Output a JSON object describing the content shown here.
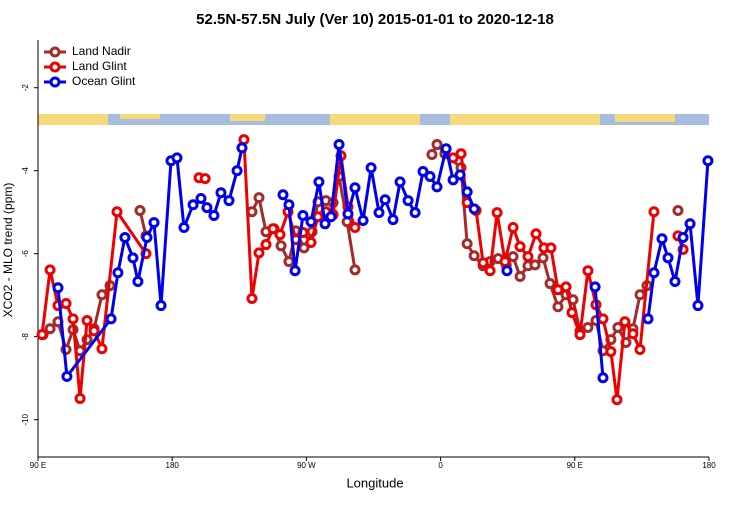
{
  "chart_data": {
    "type": "line",
    "title": "52.5N-57.5N July (Ver 10)   2015-01-01 to 2020-12-18",
    "xlabel": "Longitude",
    "ylabel": "XCO2 - MLO trend (ppm)",
    "xlim": [
      90,
      540
    ],
    "xticks": [
      {
        "value": 90,
        "label": "90 E"
      },
      {
        "value": 180,
        "label": "180"
      },
      {
        "value": 270,
        "label": "90 W"
      },
      {
        "value": 360,
        "label": "0"
      },
      {
        "value": 450,
        "label": "90 E"
      },
      {
        "value": 540,
        "label": "180"
      }
    ],
    "ylim": [
      -10.9,
      -0.85
    ],
    "yticks": [
      -2,
      -4,
      -6,
      -8,
      -10
    ],
    "legend": "top-left",
    "series": [
      {
        "name": "Land Nadir",
        "color": "#a52a2a",
        "x": [
          93.4,
          98.1,
          103.4,
          108.8,
          113.5,
          118.2,
          122.9,
          127.6,
          132.9,
          138.3,
          null,
          158.4,
          162.4,
          null,
          233.5,
          238.2,
          242.9,
          248.3,
          253,
          258.3,
          263,
          268.4,
          273.8,
          277.8,
          283.1,
          287.9,
          291.9,
          297.3,
          302.6,
          null,
          354.2,
          357.6,
          362.9,
          373.7,
          377.8,
          382.5,
          388.5,
          393.2,
          398.6,
          404,
          408.6,
          413.3,
          418.6,
          423.3,
          428.7,
          433.4,
          438.7,
          444.1,
          448.8,
          453.5,
          458.8,
          464.2,
          468.9,
          474.2,
          478.9,
          484.3,
          489,
          493.7,
          498.4,
          null,
          519.2
        ],
        "values": [
          -7.95,
          -7.81,
          -7.64,
          -8.31,
          -7.83,
          -8.34,
          -8.07,
          -7.81,
          -6.99,
          -6.77,
          null,
          -4.96,
          -5.57,
          null,
          -4.99,
          -4.65,
          -5.47,
          -5.4,
          -5.81,
          -6.19,
          -5.45,
          -5.86,
          -5.47,
          -4.75,
          -4.72,
          -4.77,
          -4.14,
          -5.23,
          -6.39,
          null,
          -3.61,
          -3.37,
          -3.59,
          -3.93,
          -5.76,
          -6.05,
          -6.29,
          -6.19,
          -6.12,
          -6.27,
          -6.07,
          -6.55,
          -6.29,
          -6.27,
          -6.1,
          -6.72,
          -7.28,
          -6.99,
          -7.11,
          -7.86,
          -7.78,
          -7.61,
          -8.34,
          -8.07,
          -7.78,
          -8.14,
          -7.81,
          -6.99,
          -6.77,
          null,
          -4.96
        ]
      },
      {
        "name": "Land Glint",
        "color": "#ee0000",
        "x": [
          92.7,
          98.1,
          103.4,
          108.8,
          113.5,
          118.2,
          122.9,
          127.6,
          132.9,
          143,
          162.4,
          null,
          198,
          202.1,
          null,
          228.1,
          233.5,
          238.2,
          242.9,
          247.6,
          252.3,
          257.7,
          263,
          267.7,
          273.1,
          277.8,
          283.1,
          287.9,
          293.2,
          297.9,
          302.6,
          null,
          368.4,
          373.7,
          377.8,
          383.8,
          388.5,
          393.2,
          397.9,
          403.2,
          408.6,
          413.3,
          418.6,
          424,
          429.3,
          434,
          438.7,
          444.1,
          448.1,
          453.5,
          458.8,
          464.2,
          468.9,
          474.2,
          478.3,
          483.6,
          489,
          493.7,
          503.1,
          null,
          519.2,
          522.6
        ],
        "values": [
          -7.95,
          -6.39,
          -7.25,
          -7.2,
          -7.57,
          -9.49,
          -7.61,
          -7.86,
          -8.29,
          -4.99,
          -6.0,
          null,
          -4.17,
          -4.19,
          null,
          -3.25,
          -7.08,
          -5.98,
          -5.78,
          -5.4,
          -5.54,
          -4.99,
          -5.66,
          -5.49,
          -5.73,
          -5.11,
          -4.99,
          -5.06,
          -3.64,
          -4.87,
          -5.37,
          null,
          -3.69,
          -3.59,
          -4.77,
          -4.96,
          -6.22,
          -6.41,
          -5.01,
          -6.19,
          -5.37,
          -5.83,
          -6.07,
          -5.52,
          -5.86,
          -5.86,
          -6.87,
          -6.8,
          -7.42,
          -7.95,
          -6.41,
          -7.23,
          -7.57,
          -8.36,
          -9.52,
          -7.64,
          -7.93,
          -8.31,
          -4.99,
          null,
          -5.57,
          -5.9
        ]
      },
      {
        "name": "Ocean Glint",
        "color": "#0000ee",
        "x": [
          103.4,
          109.4,
          139,
          143.6,
          148.3,
          153.7,
          157,
          163.1,
          167.8,
          172.5,
          179.2,
          183.2,
          187.9,
          194,
          199.3,
          203.3,
          208,
          212.7,
          218.1,
          223.5,
          226.8,
          null,
          254.3,
          258.3,
          262.4,
          267.7,
          273.1,
          278.4,
          282.5,
          286.5,
          291.9,
          297.9,
          302.6,
          308,
          313.4,
          318.7,
          322.8,
          328.1,
          332.8,
          338.2,
          342.9,
          348.2,
          352.9,
          357.6,
          363.7,
          368.4,
          373.1,
          377.8,
          382.5,
          null,
          404.5,
          null,
          463.6,
          468.9,
          null,
          499.1,
          503.1,
          508.5,
          512.5,
          517.2,
          522.6,
          527.3,
          532.6,
          539.3
        ],
        "values": [
          -6.82,
          -8.96,
          -7.57,
          -6.46,
          -5.61,
          -6.1,
          -6.67,
          -5.61,
          -5.25,
          -7.25,
          -3.76,
          -3.69,
          -5.37,
          -4.82,
          -4.67,
          -4.89,
          -5.08,
          -4.53,
          -4.72,
          -4.0,
          -3.45,
          null,
          -4.58,
          -4.82,
          -6.41,
          -5.08,
          -5.23,
          -4.27,
          -5.28,
          -5.11,
          -3.37,
          -5.04,
          -4.41,
          -5.2,
          -3.93,
          -5.01,
          -4.7,
          -5.18,
          -4.27,
          -4.72,
          -5.01,
          -4.02,
          -4.14,
          -4.39,
          -3.47,
          -4.22,
          -4.1,
          -4.51,
          -4.92,
          null,
          -6.41,
          null,
          -6.8,
          -8.99,
          null,
          -7.57,
          -6.46,
          -5.64,
          -6.1,
          -6.67,
          -5.61,
          -5.28,
          -7.25,
          -3.76
        ]
      }
    ]
  }
}
